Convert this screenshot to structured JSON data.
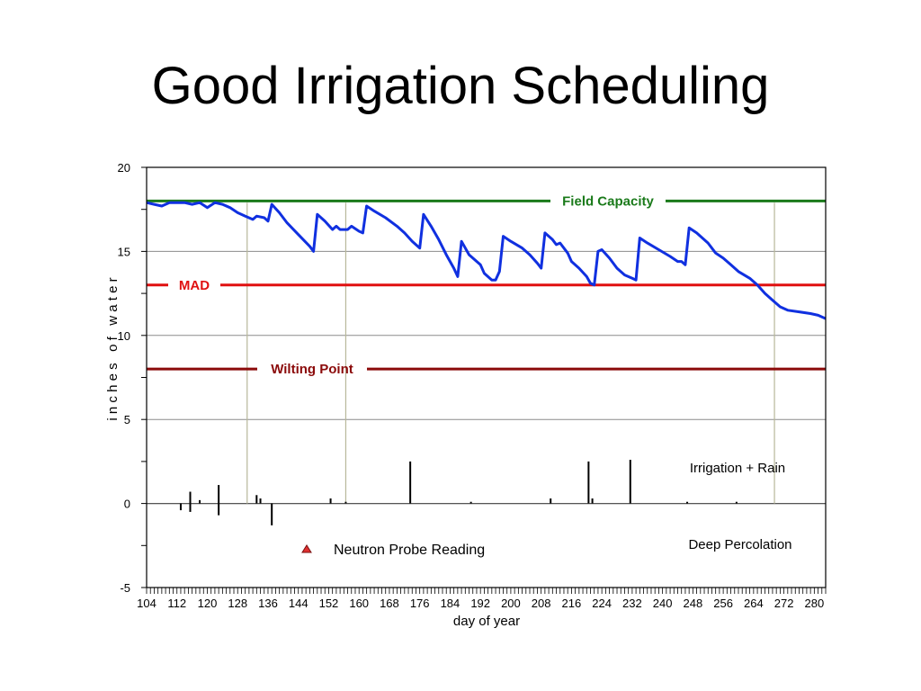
{
  "slide": {
    "title": "Good Irrigation Scheduling"
  },
  "chart_data": {
    "type": "line",
    "title": "",
    "xlabel": "day of year",
    "ylabel": "i n c h e s   o f   w a t e r",
    "xlim": [
      104,
      283
    ],
    "ylim": [
      -5,
      20
    ],
    "x_ticks": [
      104,
      112,
      120,
      128,
      136,
      144,
      152,
      160,
      168,
      176,
      184,
      192,
      200,
      208,
      216,
      224,
      232,
      240,
      248,
      256,
      264,
      272,
      280
    ],
    "y_ticks": [
      20,
      15,
      10,
      5,
      0,
      -5
    ],
    "grid": "horizontal",
    "reference_lines": [
      {
        "name": "Field Capacity",
        "y": 18,
        "color": "#1a7a1a"
      },
      {
        "name": "MAD",
        "y": 13,
        "color": "#e01010"
      },
      {
        "name": "Wilting Point",
        "y": 8,
        "color": "#8b0a0a"
      }
    ],
    "vertical_markers": [
      130.5,
      156.5,
      269.5
    ],
    "series": [
      {
        "color": "#1030e0",
        "points": [
          [
            104,
            17.9
          ],
          [
            106,
            17.8
          ],
          [
            108,
            17.7
          ],
          [
            110,
            17.9
          ],
          [
            112,
            17.9
          ],
          [
            114,
            17.9
          ],
          [
            116,
            17.8
          ],
          [
            118,
            17.9
          ],
          [
            120,
            17.6
          ],
          [
            122,
            17.9
          ],
          [
            124,
            17.8
          ],
          [
            126,
            17.6
          ],
          [
            128,
            17.3
          ],
          [
            130,
            17.1
          ],
          [
            132,
            16.9
          ],
          [
            133,
            17.1
          ],
          [
            135,
            17.0
          ],
          [
            136,
            16.8
          ],
          [
            137,
            17.8
          ],
          [
            139,
            17.3
          ],
          [
            141,
            16.7
          ],
          [
            144,
            16.0
          ],
          [
            147,
            15.3
          ],
          [
            148,
            15.0
          ],
          [
            149,
            17.2
          ],
          [
            151,
            16.8
          ],
          [
            153,
            16.3
          ],
          [
            154,
            16.5
          ],
          [
            155,
            16.3
          ],
          [
            157,
            16.3
          ],
          [
            158,
            16.5
          ],
          [
            160,
            16.2
          ],
          [
            161,
            16.1
          ],
          [
            162,
            17.7
          ],
          [
            164,
            17.4
          ],
          [
            167,
            17.0
          ],
          [
            170,
            16.5
          ],
          [
            172,
            16.1
          ],
          [
            174,
            15.6
          ],
          [
            176,
            15.2
          ],
          [
            177,
            17.2
          ],
          [
            179,
            16.5
          ],
          [
            181,
            15.7
          ],
          [
            183,
            14.8
          ],
          [
            185,
            14.0
          ],
          [
            186,
            13.5
          ],
          [
            187,
            15.6
          ],
          [
            189,
            14.8
          ],
          [
            192,
            14.2
          ],
          [
            193,
            13.7
          ],
          [
            195,
            13.3
          ],
          [
            196,
            13.3
          ],
          [
            197,
            13.8
          ],
          [
            198,
            15.9
          ],
          [
            200,
            15.6
          ],
          [
            203,
            15.2
          ],
          [
            205,
            14.8
          ],
          [
            207,
            14.3
          ],
          [
            208,
            14.0
          ],
          [
            209,
            16.1
          ],
          [
            211,
            15.7
          ],
          [
            212,
            15.4
          ],
          [
            213,
            15.5
          ],
          [
            215,
            14.9
          ],
          [
            216,
            14.4
          ],
          [
            218,
            14.0
          ],
          [
            220,
            13.5
          ],
          [
            221,
            13.1
          ],
          [
            222,
            13.0
          ],
          [
            223,
            15.0
          ],
          [
            224,
            15.1
          ],
          [
            226,
            14.6
          ],
          [
            228,
            14.0
          ],
          [
            230,
            13.6
          ],
          [
            232,
            13.4
          ],
          [
            233,
            13.3
          ],
          [
            234,
            15.8
          ],
          [
            236,
            15.5
          ],
          [
            239,
            15.1
          ],
          [
            242,
            14.7
          ],
          [
            244,
            14.4
          ],
          [
            245,
            14.4
          ],
          [
            246,
            14.2
          ],
          [
            247,
            16.4
          ],
          [
            249,
            16.1
          ],
          [
            252,
            15.5
          ],
          [
            254,
            14.9
          ],
          [
            256,
            14.6
          ],
          [
            258,
            14.2
          ],
          [
            260,
            13.8
          ],
          [
            263,
            13.4
          ],
          [
            265,
            13.0
          ],
          [
            267,
            12.5
          ],
          [
            269,
            12.1
          ],
          [
            271,
            11.7
          ],
          [
            273,
            11.5
          ],
          [
            276,
            11.4
          ],
          [
            279,
            11.3
          ],
          [
            281,
            11.2
          ],
          [
            283,
            11.0
          ]
        ]
      }
    ],
    "events": [
      {
        "x": 113,
        "y": -0.4
      },
      {
        "x": 115.5,
        "y": 0.7
      },
      {
        "x": 115.5,
        "y": -0.5
      },
      {
        "x": 118,
        "y": 0.2
      },
      {
        "x": 123,
        "y": 1.1
      },
      {
        "x": 123,
        "y": -0.7
      },
      {
        "x": 133,
        "y": 0.5
      },
      {
        "x": 134,
        "y": 0.3
      },
      {
        "x": 137,
        "y": -1.3
      },
      {
        "x": 152.5,
        "y": 0.3
      },
      {
        "x": 156.5,
        "y": 0.1
      },
      {
        "x": 173.5,
        "y": 2.5
      },
      {
        "x": 189.5,
        "y": 0.1
      },
      {
        "x": 210.5,
        "y": 0.3
      },
      {
        "x": 220.5,
        "y": 2.5
      },
      {
        "x": 221.5,
        "y": 0.3
      },
      {
        "x": 231.5,
        "y": 2.6
      },
      {
        "x": 246.5,
        "y": 0.1
      },
      {
        "x": 259.5,
        "y": 0.1
      }
    ],
    "annotations": [
      {
        "name": "irrigation-rain",
        "text": "Irrigation + Rain"
      },
      {
        "name": "deep-percolation",
        "text": "Deep Percolation"
      }
    ],
    "legend": {
      "label": "Neutron Probe Reading",
      "marker_color": "#e03030"
    }
  }
}
